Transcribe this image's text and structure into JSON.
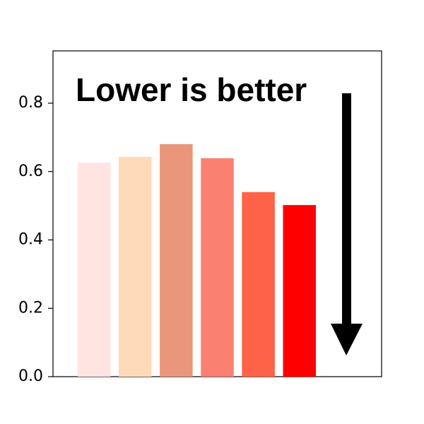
{
  "chart_data": {
    "type": "bar",
    "annotation": "Lower is better",
    "categories": [
      null,
      null,
      null,
      null,
      null,
      null
    ],
    "values": [
      0.626,
      0.643,
      0.68,
      0.639,
      0.54,
      0.502
    ],
    "colors": [
      "#ffe4e1",
      "#ffdab9",
      "#e9967a",
      "#fa8072",
      "#ff6347",
      "#ff0000"
    ],
    "ylim": [
      0,
      0.953
    ],
    "yticks": [
      {
        "value": 0,
        "label": "0.0"
      },
      {
        "value": 0.2,
        "label": "0.2"
      },
      {
        "value": 0.4,
        "label": "0.4"
      },
      {
        "value": 0.6,
        "label": "0.6"
      },
      {
        "value": 0.8,
        "label": "0.8"
      }
    ],
    "grid": false
  }
}
